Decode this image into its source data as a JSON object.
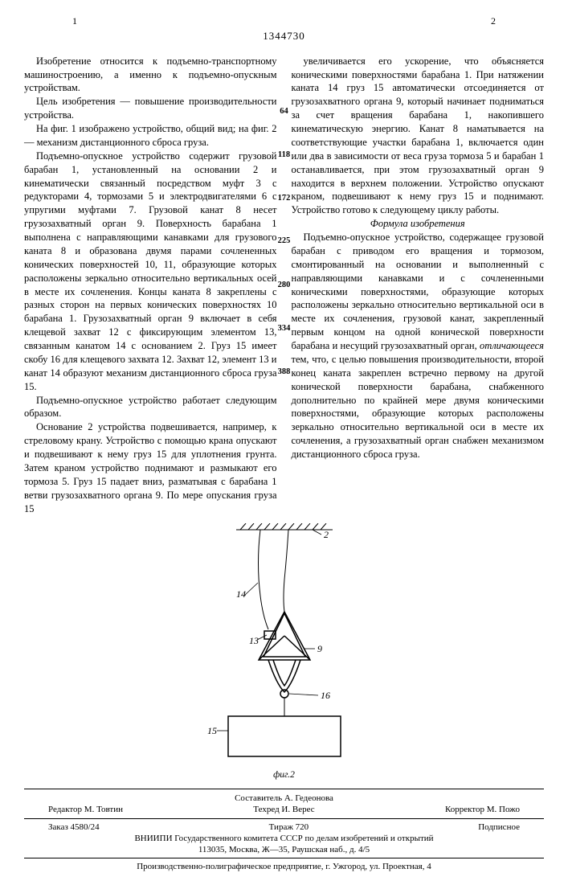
{
  "page_left_num": "1",
  "page_right_num": "2",
  "doc_number": "1344730",
  "col1_paragraphs": [
    "Изобретение относится к подъемно-транспортному машиностроению, а именно к подъемно-опускным устройствам.",
    "Цель изобретения — повышение производительности устройства.",
    "На фиг. 1 изображено устройство, общий вид; на фиг. 2 — механизм дистанционного сброса груза.",
    "Подъемно-опускное устройство содержит грузовой барабан 1, установленный на основании 2 и кинематически связанный посредством муфт 3 с редукторами 4, тормозами 5 и электродвигателями 6 с упругими муфтами 7. Грузовой канат 8 несет грузозахватный орган 9. Поверхность барабана 1 выполнена с направляющими канавками для грузового каната 8 и образована двумя парами сочлененных конических поверхностей 10, 11, образующие которых расположены зеркально относительно вертикальных осей в месте их сочленения. Концы каната 8 закреплены с разных сторон на первых конических поверхностях 10 барабана 1. Грузозахватный орган 9 включает в себя клещевой захват 12 с фиксирующим элементом 13, связанным канатом 14 с основанием 2. Груз 15 имеет скобу 16 для клещевого захвата 12. Захват 12, элемент 13 и канат 14 образуют механизм дистанционного сброса груза 15.",
    "Подъемно-опускное устройство работает следующим образом.",
    "Основание 2 устройства подвешивается, например, к стреловому крану. Устройство с помощью крана опускают и подвешивают к нему груз 15 для уплотнения грунта. Затем краном устройство поднимают и размыкают его тормоза 5. Груз 15 падает вниз, разматывая с барабана 1 ветви грузозахватного органа 9. По мере опускания груза 15"
  ],
  "col2_top": "увеличивается его ускорение, что объясняется коническими поверхностями барабана 1. При натяжении каната 14 груз 15 автоматически отсоединяется от грузозахватного органа 9, который начинает подниматься за счет вращения барабана 1, накопившего кинематическую энергию. Канат 8 наматывается на соответствующие участки барабана 1, включается один или два в зависимости от веса груза тормоза 5 и барабан 1 останавливается, при этом грузозахватный орган 9 находится в верхнем положении. Устройство опускают краном, подвешивают к нему груз 15 и поднимают. Устройство готово к следующему циклу работы.",
  "claims_heading": "Формула изобретения",
  "claims_body": "Подъемно-опускное устройство, содержащее грузовой барабан с приводом его вращения и тормозом, смонтированный на основании и выполненный с направляющими канавками и с сочлененными коническими поверхностями, образующие которых расположены зеркально относительно вертикальной оси в месте их сочленения, грузовой канат, закрепленный первым концом на одной конической поверхности барабана и несущий грузозахватный орган, <i>отличающееся</i> тем, что, с целью повышения производительности, второй конец каната закреплен встречно первому на другой конической поверхности барабана, снабженного дополнительно по крайней мере двумя коническими поверхностями, образующие которых расположены зеркально относительно вертикальной оси в месте их сочленения, а грузозахватный орган снабжен механизмом дистанционного сброса груза.",
  "gutter_lines": {
    "5": 64,
    "10": 118,
    "15": 172,
    "20": 225,
    "25": 280,
    "30": 334,
    "35": 388
  },
  "figure": {
    "label": "фиг.2",
    "callouts": {
      "n2": "2",
      "n9": "9",
      "n13": "13",
      "n14": "14",
      "n15": "15",
      "n16": "16"
    }
  },
  "footer": {
    "compiler": "Составитель А. Гедеонова",
    "editor": "Редактор М. Товтин",
    "techred": "Техред И. Верес",
    "corrector": "Корректор М. Пожо",
    "order": "Заказ 4580/24",
    "tirazh": "Тираж 720",
    "signed": "Подписное",
    "org": "ВНИИПИ Государственного комитета СССР по делам изобретений и открытий",
    "address": "113035, Москва, Ж—35, Раушская наб., д. 4/5",
    "printer": "Производственно-полиграфическое предприятие, г. Ужгород, ул. Проектная, 4"
  }
}
